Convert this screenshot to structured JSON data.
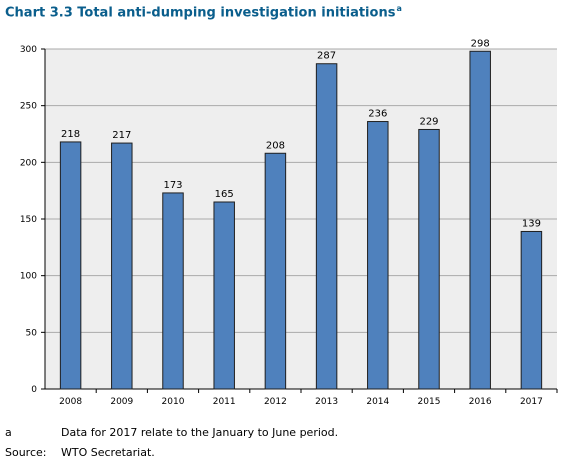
{
  "chart_title": "Chart 3.3 Total anti-dumping investigation initiations",
  "title_note_marker": "a",
  "colors": {
    "bar": "#4f81bd",
    "bar_edge": "#1f1f1f",
    "plot_bg": "#eeeeee",
    "grid": "#aaaaaa",
    "title": "#0a5e8c"
  },
  "chart_data": {
    "type": "bar",
    "categories": [
      "2008",
      "2009",
      "2010",
      "2011",
      "2012",
      "2013",
      "2014",
      "2015",
      "2016",
      "2017"
    ],
    "values": [
      218,
      217,
      173,
      165,
      208,
      287,
      236,
      229,
      298,
      139
    ],
    "ylim": [
      0,
      300
    ],
    "yticks": [
      0,
      50,
      100,
      150,
      200,
      250,
      300
    ],
    "grid": true,
    "data_labels": true
  },
  "footnotes": [
    {
      "key": "a",
      "text": "Data for 2017 relate to the January to June period."
    },
    {
      "key": "Source:",
      "text": "WTO Secretariat."
    }
  ]
}
